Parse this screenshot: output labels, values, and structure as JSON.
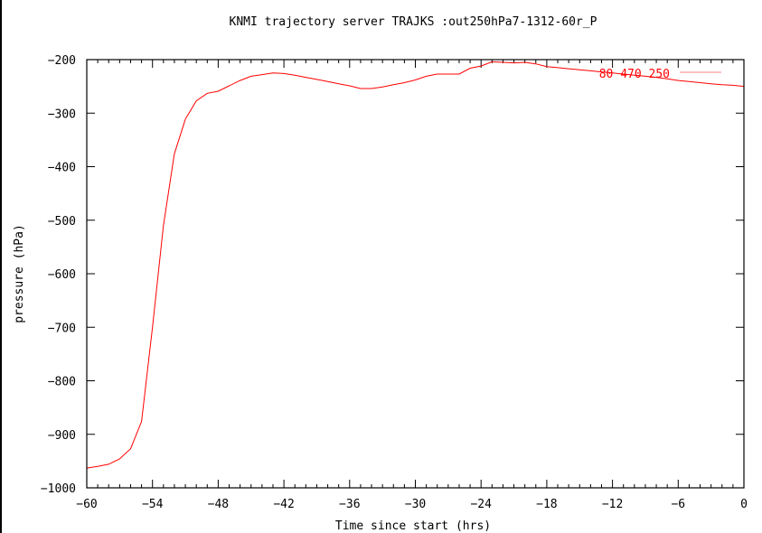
{
  "chart_data": {
    "type": "line",
    "title": "KNMI trajectory server TRAJKS :out250hPa7-1312-60r_P",
    "xlabel": "Time since start (hrs)",
    "ylabel": "pressure (hPa)",
    "xlim": [
      -60,
      0
    ],
    "ylim": [
      -1000,
      -200
    ],
    "x_ticks": [
      -60,
      -54,
      -48,
      -42,
      -36,
      -30,
      -24,
      -18,
      -12,
      -6,
      0
    ],
    "x_tick_labels": [
      "-60",
      "-54",
      "-48",
      "-42",
      "-36",
      "-30",
      "-24",
      "-18",
      "-12",
      "-6",
      "0"
    ],
    "y_ticks": [
      -200,
      -300,
      -400,
      -500,
      -600,
      -700,
      -800,
      -900,
      -1000
    ],
    "y_tick_labels": [
      "-200",
      "-300",
      "-400",
      "-500",
      "-600",
      "-700",
      "-800",
      "-900",
      "-1000"
    ],
    "grid": false,
    "legend_position": "top-right",
    "series": [
      {
        "name": "80 470 250",
        "color": "#ff0000",
        "x": [
          -60,
          -59,
          -58,
          -57,
          -56,
          -55,
          -54,
          -53,
          -52,
          -51,
          -50,
          -49,
          -48,
          -47,
          -46,
          -45,
          -44,
          -43,
          -42,
          -41,
          -40,
          -39,
          -38,
          -37,
          -36,
          -35,
          -34,
          -33,
          -32,
          -31,
          -30,
          -29,
          -28,
          -27,
          -26,
          -25,
          -24,
          -23,
          -22,
          -21,
          -20,
          -19,
          -18,
          -17,
          -16,
          -15,
          -14,
          -13,
          -12,
          -11,
          -10,
          -9,
          -8,
          -7,
          -6,
          -5,
          -4,
          -3,
          -2,
          -1,
          0
        ],
        "y": [
          -963,
          -960,
          -956,
          -946,
          -927,
          -876,
          -700,
          -510,
          -376,
          -311,
          -277,
          -263,
          -259,
          -249,
          -239,
          -231,
          -228,
          -225,
          -226,
          -229,
          -233,
          -237,
          -241,
          -245,
          -249,
          -254,
          -254,
          -251,
          -247,
          -243,
          -238,
          -231,
          -227,
          -227,
          -227,
          -216,
          -212,
          -204,
          -205,
          -206,
          -205,
          -208,
          -213,
          -215,
          -217,
          -219,
          -221,
          -223,
          -225,
          -227,
          -229,
          -231,
          -233,
          -236,
          -239,
          -241,
          -243,
          -245,
          -247,
          -248,
          -250
        ]
      }
    ]
  }
}
